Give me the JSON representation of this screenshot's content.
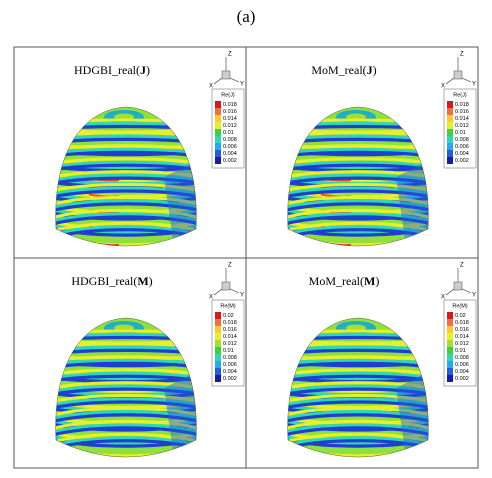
{
  "figure_label": "(a)",
  "panels": [
    {
      "title": {
        "prefix": "HDGBI_real(",
        "bold": "J",
        "suffix": ")"
      },
      "legend": {
        "title": "Re(J)",
        "ticks": [
          "0.018",
          "0.016",
          "0.014",
          "0.012",
          "0.01",
          "0.008",
          "0.006",
          "0.004",
          "0.002"
        ]
      },
      "axes": {
        "z": "Z",
        "x": "X",
        "y": "Y"
      }
    },
    {
      "title": {
        "prefix": "MoM_real(",
        "bold": "J",
        "suffix": ")"
      },
      "legend": {
        "title": "Re(J)",
        "ticks": [
          "0.018",
          "0.016",
          "0.014",
          "0.012",
          "0.01",
          "0.008",
          "0.006",
          "0.004",
          "0.002"
        ]
      },
      "axes": {
        "z": "Z",
        "x": "X",
        "y": "Y"
      }
    },
    {
      "title": {
        "prefix": "HDGBI_real(",
        "bold": "M",
        "suffix": ")"
      },
      "legend": {
        "title": "Re(M)",
        "ticks": [
          "0.02",
          "0.018",
          "0.016",
          "0.014",
          "0.012",
          "0.01",
          "0.008",
          "0.006",
          "0.004",
          "0.002"
        ]
      },
      "axes": {
        "z": "Z",
        "x": "X",
        "y": "Y"
      }
    },
    {
      "title": {
        "prefix": "MoM_real(",
        "bold": "M",
        "suffix": ")"
      },
      "legend": {
        "title": "Re(M)",
        "ticks": [
          "0.02",
          "0.018",
          "0.016",
          "0.014",
          "0.012",
          "0.01",
          "0.008",
          "0.006",
          "0.004",
          "0.002"
        ]
      },
      "axes": {
        "z": "Z",
        "x": "X",
        "y": "Y"
      }
    }
  ]
}
